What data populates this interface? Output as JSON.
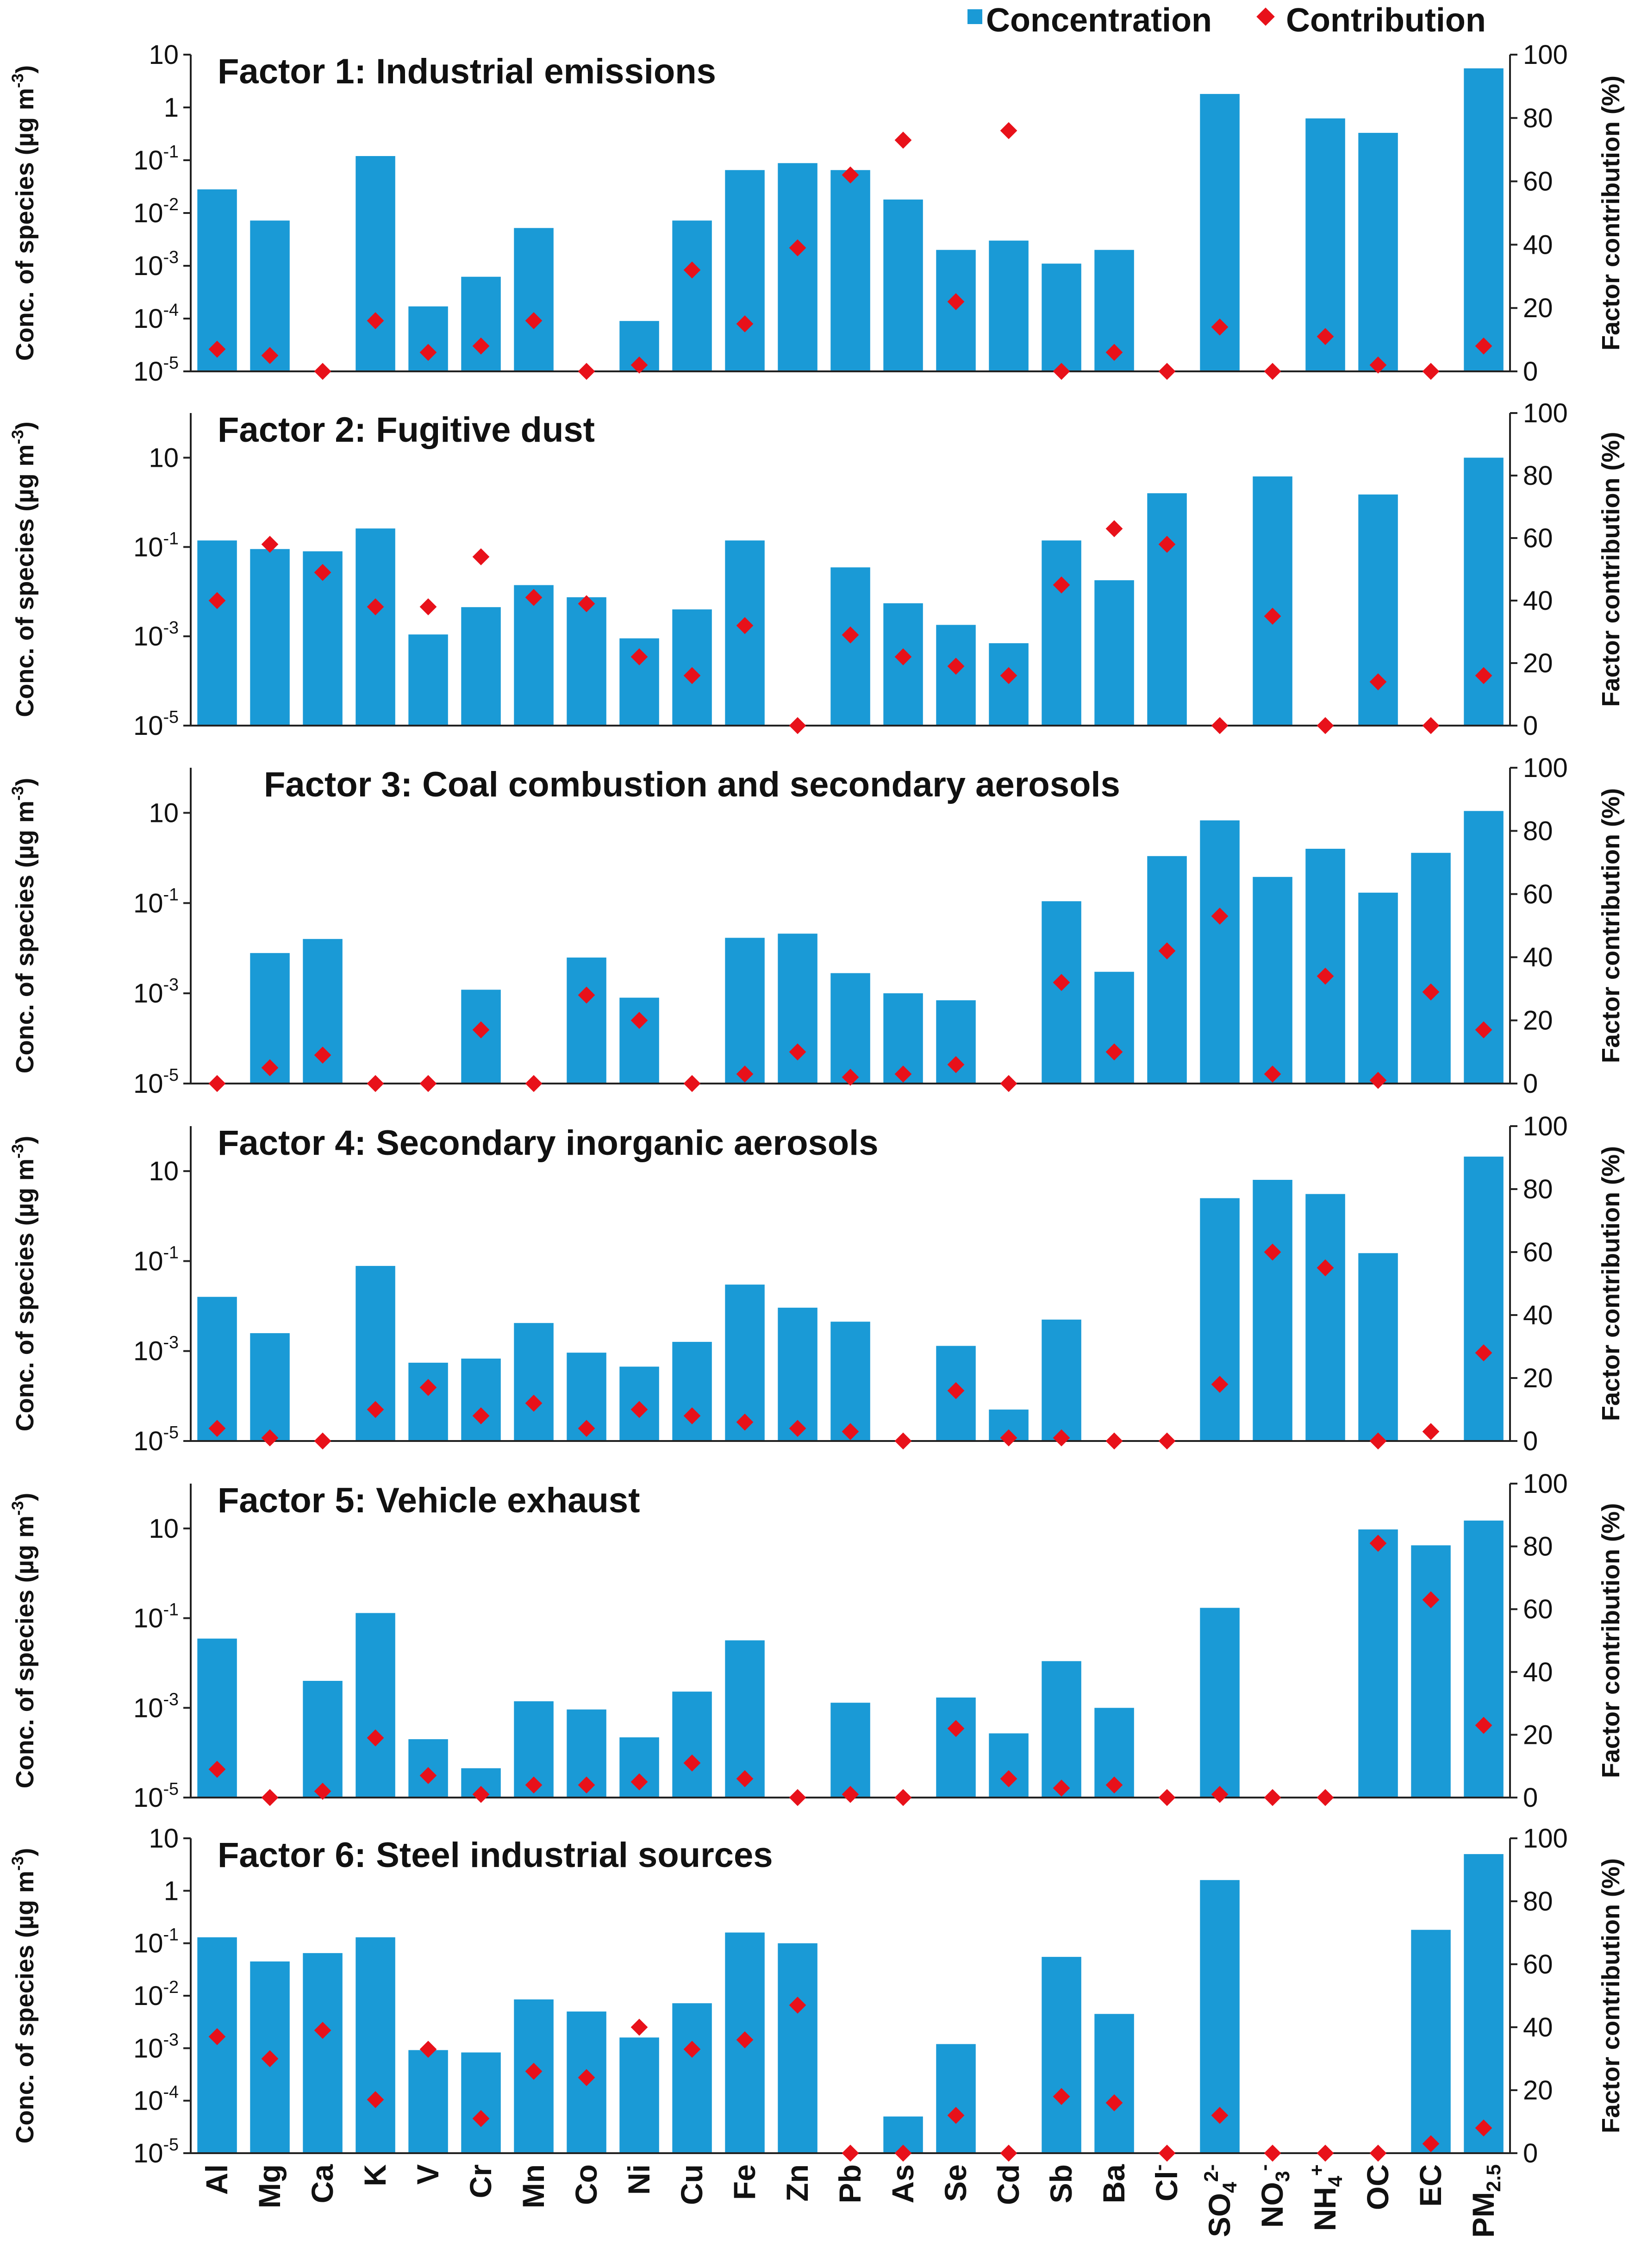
{
  "chart_data": {
    "type": "bar",
    "legend": {
      "placement": "top-right",
      "concentration": "Concentration",
      "contribution": "Contribution"
    },
    "colors": {
      "bar": "#1a9ad6",
      "marker": "#e8111a"
    },
    "categories": [
      "Al",
      "Mg",
      "Ca",
      "K",
      "V",
      "Cr",
      "Mn",
      "Co",
      "Ni",
      "Cu",
      "Fe",
      "Zn",
      "Pb",
      "As",
      "Se",
      "Cd",
      "Sb",
      "Ba",
      "Cl",
      "SO4",
      "NO3",
      "NH4",
      "OC",
      "EC",
      "PM2.5"
    ],
    "category_labels": [
      {
        "base": "Al"
      },
      {
        "base": "Mg"
      },
      {
        "base": "Ca"
      },
      {
        "base": "K"
      },
      {
        "base": "V"
      },
      {
        "base": "Cr"
      },
      {
        "base": "Mn"
      },
      {
        "base": "Co"
      },
      {
        "base": "Ni"
      },
      {
        "base": "Cu"
      },
      {
        "base": "Fe"
      },
      {
        "base": "Zn"
      },
      {
        "base": "Pb"
      },
      {
        "base": "As"
      },
      {
        "base": "Se"
      },
      {
        "base": "Cd"
      },
      {
        "base": "Sb"
      },
      {
        "base": "Ba"
      },
      {
        "base": "Cl",
        "sup": "-"
      },
      {
        "base": "SO",
        "sub": "4",
        "sup": "2-"
      },
      {
        "base": "NO",
        "sub": "3",
        "sup": "-"
      },
      {
        "base": "NH",
        "sub": "4",
        "sup": "+"
      },
      {
        "base": "OC"
      },
      {
        "base": "EC"
      },
      {
        "base": "PM",
        "sub": "2.5"
      }
    ],
    "y_left_label": {
      "main": "Conc. of species (µg m",
      "sup": "-3",
      "end": ")"
    },
    "y_right_label": "Factor contribution (%)",
    "y_right_ticks": [
      "0",
      "20",
      "40",
      "60",
      "80",
      "100"
    ],
    "ylim_right": [
      0,
      100
    ],
    "panels": [
      {
        "title": "Factor 1: Industrial emissions",
        "ylim_log10": [
          -5,
          1
        ],
        "y_ticks": [
          {
            "exp": 1,
            "label": "10"
          },
          {
            "exp": 0,
            "label": "1"
          },
          {
            "exp": -1,
            "label": "10",
            "sup": "-1"
          },
          {
            "exp": -2,
            "label": "10",
            "sup": "-2"
          },
          {
            "exp": -3,
            "label": "10",
            "sup": "-3"
          },
          {
            "exp": -4,
            "label": "10",
            "sup": "-4"
          },
          {
            "exp": -5,
            "label": "10",
            "sup": "-5"
          }
        ],
        "concentration": [
          0.028,
          0.0072,
          null,
          0.12,
          0.00017,
          0.00062,
          0.0052,
          null,
          9e-05,
          0.0072,
          0.065,
          0.088,
          0.065,
          0.018,
          0.002,
          0.003,
          0.0011,
          0.002,
          null,
          1.8,
          null,
          0.62,
          0.33,
          null,
          5.5
        ],
        "contribution": [
          7,
          5,
          0,
          16,
          6,
          8,
          16,
          0,
          2,
          32,
          15,
          39,
          62,
          73,
          22,
          76,
          0,
          6,
          0,
          14,
          0,
          11,
          2,
          0,
          8
        ]
      },
      {
        "title": "Factor 2: Fugitive dust",
        "ylim_log10": [
          -5,
          2
        ],
        "y_ticks": [
          {
            "exp": 1,
            "label": "10"
          },
          {
            "exp": -1,
            "label": "10",
            "sup": "-1"
          },
          {
            "exp": -3,
            "label": "10",
            "sup": "-3"
          },
          {
            "exp": -5,
            "label": "10",
            "sup": "-5"
          }
        ],
        "concentration": [
          0.14,
          0.09,
          0.08,
          0.26,
          0.0011,
          0.0045,
          0.014,
          0.0075,
          0.0009,
          0.004,
          0.14,
          null,
          0.035,
          0.0055,
          0.0018,
          0.0007,
          0.14,
          0.018,
          1.6,
          null,
          3.8,
          null,
          1.5,
          null,
          10
        ],
        "contribution": [
          40,
          58,
          49,
          38,
          38,
          54,
          41,
          39,
          22,
          16,
          32,
          0,
          29,
          22,
          19,
          16,
          45,
          63,
          58,
          0,
          35,
          0,
          14,
          0,
          16
        ]
      },
      {
        "title": "Factor 3: Coal combustion and secondary aerosols",
        "ylim_log10": [
          -5,
          2
        ],
        "y_ticks": [
          {
            "exp": 1,
            "label": "10"
          },
          {
            "exp": -1,
            "label": "10",
            "sup": "-1"
          },
          {
            "exp": -3,
            "label": "10",
            "sup": "-3"
          },
          {
            "exp": -5,
            "label": "10",
            "sup": "-5"
          }
        ],
        "concentration": [
          null,
          0.0078,
          0.016,
          null,
          null,
          0.0012,
          null,
          0.0062,
          0.0008,
          null,
          0.017,
          0.021,
          0.0028,
          0.001,
          0.0007,
          null,
          0.11,
          0.003,
          1.1,
          6.8,
          0.38,
          1.6,
          0.17,
          1.3,
          11
        ],
        "contribution": [
          0,
          5,
          9,
          0,
          0,
          17,
          0,
          28,
          20,
          0,
          3,
          10,
          2,
          3,
          6,
          0,
          32,
          10,
          42,
          53,
          3,
          34,
          1,
          29,
          17
        ]
      },
      {
        "title": "Factor 4: Secondary inorganic aerosols",
        "ylim_log10": [
          -5,
          2
        ],
        "y_ticks": [
          {
            "exp": 1,
            "label": "10"
          },
          {
            "exp": -1,
            "label": "10",
            "sup": "-1"
          },
          {
            "exp": -3,
            "label": "10",
            "sup": "-3"
          },
          {
            "exp": -5,
            "label": "10",
            "sup": "-5"
          }
        ],
        "concentration": [
          0.016,
          0.0025,
          null,
          0.078,
          0.00055,
          0.00068,
          0.0042,
          0.00092,
          0.00045,
          0.0016,
          0.03,
          0.0092,
          0.0045,
          null,
          0.0013,
          5e-05,
          0.005,
          null,
          null,
          2.5,
          6.4,
          3.1,
          0.15,
          null,
          21
        ],
        "contribution": [
          4,
          1,
          0,
          10,
          17,
          8,
          12,
          4,
          10,
          8,
          6,
          4,
          3,
          0,
          16,
          1,
          1,
          0,
          0,
          18,
          60,
          55,
          0,
          3,
          28
        ]
      },
      {
        "title": "Factor 5: Vehicle exhaust",
        "ylim_log10": [
          -5,
          2
        ],
        "y_ticks": [
          {
            "exp": 1,
            "label": "10"
          },
          {
            "exp": -1,
            "label": "10",
            "sup": "-1"
          },
          {
            "exp": -3,
            "label": "10",
            "sup": "-3"
          },
          {
            "exp": -5,
            "label": "10",
            "sup": "-5"
          }
        ],
        "concentration": [
          0.035,
          null,
          0.004,
          0.13,
          0.0002,
          4.5e-05,
          0.0014,
          0.00092,
          0.00022,
          0.0023,
          0.032,
          null,
          0.0013,
          null,
          0.0017,
          0.00027,
          0.011,
          0.001,
          null,
          0.17,
          null,
          null,
          9.5,
          4.2,
          15
        ],
        "contribution": [
          9,
          0,
          2,
          19,
          7,
          1,
          4,
          4,
          5,
          11,
          6,
          0,
          1,
          0,
          22,
          6,
          3,
          4,
          0,
          1,
          0,
          0,
          81,
          63,
          23
        ]
      },
      {
        "title": "Factor 6: Steel industrial sources",
        "ylim_log10": [
          -5,
          1
        ],
        "y_ticks": [
          {
            "exp": 1,
            "label": "10"
          },
          {
            "exp": 0,
            "label": "1"
          },
          {
            "exp": -1,
            "label": "10",
            "sup": "-1"
          },
          {
            "exp": -2,
            "label": "10",
            "sup": "-2"
          },
          {
            "exp": -3,
            "label": "10",
            "sup": "-3"
          },
          {
            "exp": -4,
            "label": "10",
            "sup": "-4"
          },
          {
            "exp": -5,
            "label": "10",
            "sup": "-5"
          }
        ],
        "concentration": [
          0.13,
          0.045,
          0.065,
          0.13,
          0.00092,
          0.00083,
          0.0085,
          0.005,
          0.0016,
          0.0072,
          0.16,
          0.1,
          null,
          5e-05,
          0.0012,
          null,
          0.055,
          0.0045,
          null,
          1.6,
          null,
          null,
          null,
          0.18,
          5
        ],
        "contribution": [
          37,
          30,
          39,
          17,
          33,
          11,
          26,
          24,
          40,
          33,
          36,
          47,
          0,
          0,
          12,
          0,
          18,
          16,
          0,
          12,
          0,
          0,
          0,
          3,
          8
        ]
      }
    ]
  }
}
